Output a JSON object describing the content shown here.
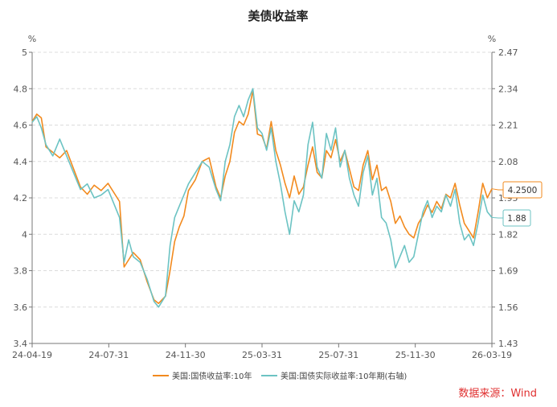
{
  "chart_data": {
    "type": "line",
    "title": "美债收益率",
    "left_axis": {
      "unit": "%",
      "min": 3.4,
      "max": 5.0,
      "ticks": [
        "3.4",
        "3.6",
        "3.8",
        "4",
        "4.2",
        "4.4",
        "4.6",
        "4.8",
        "5"
      ]
    },
    "right_axis": {
      "unit": "%",
      "min": 1.43,
      "max": 2.47,
      "ticks": [
        "1.43",
        "1.56",
        "1.69",
        "1.82",
        "1.95",
        "2.08",
        "2.21",
        "2.34",
        "2.47"
      ]
    },
    "x_ticks": [
      "24-04-19",
      "24-07-31",
      "24-11-30",
      "25-03-31",
      "25-07-31",
      "25-11-30",
      "26-03-19"
    ],
    "series": [
      {
        "name": "美国:国债收益率:10年",
        "axis": "left",
        "color": "#f28a1e",
        "last_label": "4.2500",
        "points": [
          [
            0,
            4.62
          ],
          [
            0.01,
            4.66
          ],
          [
            0.02,
            4.64
          ],
          [
            0.03,
            4.48
          ],
          [
            0.045,
            4.45
          ],
          [
            0.06,
            4.42
          ],
          [
            0.075,
            4.46
          ],
          [
            0.09,
            4.36
          ],
          [
            0.105,
            4.26
          ],
          [
            0.12,
            4.22
          ],
          [
            0.135,
            4.27
          ],
          [
            0.15,
            4.24
          ],
          [
            0.165,
            4.28
          ],
          [
            0.18,
            4.22
          ],
          [
            0.19,
            4.18
          ],
          [
            0.2,
            3.82
          ],
          [
            0.21,
            3.86
          ],
          [
            0.22,
            3.9
          ],
          [
            0.235,
            3.86
          ],
          [
            0.25,
            3.74
          ],
          [
            0.265,
            3.64
          ],
          [
            0.275,
            3.62
          ],
          [
            0.29,
            3.66
          ],
          [
            0.3,
            3.8
          ],
          [
            0.31,
            3.96
          ],
          [
            0.32,
            4.04
          ],
          [
            0.33,
            4.1
          ],
          [
            0.34,
            4.24
          ],
          [
            0.355,
            4.3
          ],
          [
            0.37,
            4.4
          ],
          [
            0.385,
            4.42
          ],
          [
            0.4,
            4.26
          ],
          [
            0.41,
            4.2
          ],
          [
            0.42,
            4.32
          ],
          [
            0.43,
            4.4
          ],
          [
            0.44,
            4.56
          ],
          [
            0.45,
            4.62
          ],
          [
            0.46,
            4.6
          ],
          [
            0.47,
            4.66
          ],
          [
            0.48,
            4.79
          ],
          [
            0.49,
            4.55
          ],
          [
            0.5,
            4.54
          ],
          [
            0.51,
            4.47
          ],
          [
            0.52,
            4.62
          ],
          [
            0.53,
            4.46
          ],
          [
            0.54,
            4.38
          ],
          [
            0.55,
            4.28
          ],
          [
            0.56,
            4.2
          ],
          [
            0.57,
            4.32
          ],
          [
            0.58,
            4.22
          ],
          [
            0.59,
            4.26
          ],
          [
            0.6,
            4.38
          ],
          [
            0.61,
            4.48
          ],
          [
            0.62,
            4.34
          ],
          [
            0.63,
            4.31
          ],
          [
            0.64,
            4.46
          ],
          [
            0.65,
            4.42
          ],
          [
            0.66,
            4.52
          ],
          [
            0.67,
            4.4
          ],
          [
            0.68,
            4.46
          ],
          [
            0.69,
            4.36
          ],
          [
            0.7,
            4.26
          ],
          [
            0.71,
            4.24
          ],
          [
            0.72,
            4.38
          ],
          [
            0.73,
            4.46
          ],
          [
            0.74,
            4.3
          ],
          [
            0.75,
            4.38
          ],
          [
            0.76,
            4.24
          ],
          [
            0.77,
            4.26
          ],
          [
            0.78,
            4.18
          ],
          [
            0.79,
            4.06
          ],
          [
            0.8,
            4.1
          ],
          [
            0.81,
            4.04
          ],
          [
            0.82,
            4.0
          ],
          [
            0.83,
            3.98
          ],
          [
            0.84,
            4.06
          ],
          [
            0.85,
            4.1
          ],
          [
            0.86,
            4.16
          ],
          [
            0.87,
            4.12
          ],
          [
            0.88,
            4.18
          ],
          [
            0.89,
            4.14
          ],
          [
            0.9,
            4.22
          ],
          [
            0.91,
            4.2
          ],
          [
            0.92,
            4.28
          ],
          [
            0.93,
            4.16
          ],
          [
            0.94,
            4.06
          ],
          [
            0.95,
            4.02
          ],
          [
            0.96,
            3.98
          ],
          [
            0.97,
            4.12
          ],
          [
            0.98,
            4.28
          ],
          [
            0.99,
            4.2
          ],
          [
            1.0,
            4.25
          ]
        ]
      },
      {
        "name": "美国:国债实际收益率:10年期(右轴)",
        "axis": "right",
        "color": "#6cc3c3",
        "last_label": "1.88",
        "points": [
          [
            0,
            2.22
          ],
          [
            0.01,
            2.24
          ],
          [
            0.02,
            2.2
          ],
          [
            0.03,
            2.14
          ],
          [
            0.045,
            2.1
          ],
          [
            0.06,
            2.16
          ],
          [
            0.075,
            2.1
          ],
          [
            0.09,
            2.04
          ],
          [
            0.105,
            1.98
          ],
          [
            0.12,
            2.0
          ],
          [
            0.135,
            1.95
          ],
          [
            0.15,
            1.96
          ],
          [
            0.165,
            1.98
          ],
          [
            0.18,
            1.92
          ],
          [
            0.19,
            1.88
          ],
          [
            0.2,
            1.72
          ],
          [
            0.21,
            1.8
          ],
          [
            0.22,
            1.74
          ],
          [
            0.235,
            1.72
          ],
          [
            0.25,
            1.66
          ],
          [
            0.265,
            1.58
          ],
          [
            0.275,
            1.56
          ],
          [
            0.29,
            1.6
          ],
          [
            0.3,
            1.78
          ],
          [
            0.31,
            1.88
          ],
          [
            0.32,
            1.92
          ],
          [
            0.33,
            1.96
          ],
          [
            0.34,
            2.0
          ],
          [
            0.355,
            2.04
          ],
          [
            0.37,
            2.08
          ],
          [
            0.385,
            2.06
          ],
          [
            0.4,
            1.98
          ],
          [
            0.41,
            1.94
          ],
          [
            0.42,
            2.08
          ],
          [
            0.43,
            2.14
          ],
          [
            0.44,
            2.24
          ],
          [
            0.45,
            2.28
          ],
          [
            0.46,
            2.24
          ],
          [
            0.47,
            2.3
          ],
          [
            0.48,
            2.34
          ],
          [
            0.49,
            2.2
          ],
          [
            0.5,
            2.18
          ],
          [
            0.51,
            2.12
          ],
          [
            0.52,
            2.2
          ],
          [
            0.53,
            2.08
          ],
          [
            0.54,
            2.0
          ],
          [
            0.55,
            1.9
          ],
          [
            0.56,
            1.82
          ],
          [
            0.57,
            1.94
          ],
          [
            0.58,
            1.9
          ],
          [
            0.59,
            1.96
          ],
          [
            0.6,
            2.14
          ],
          [
            0.61,
            2.22
          ],
          [
            0.62,
            2.06
          ],
          [
            0.63,
            2.02
          ],
          [
            0.64,
            2.18
          ],
          [
            0.65,
            2.12
          ],
          [
            0.66,
            2.2
          ],
          [
            0.67,
            2.06
          ],
          [
            0.68,
            2.12
          ],
          [
            0.69,
            2.02
          ],
          [
            0.7,
            1.96
          ],
          [
            0.71,
            1.92
          ],
          [
            0.72,
            2.04
          ],
          [
            0.73,
            2.1
          ],
          [
            0.74,
            1.96
          ],
          [
            0.75,
            2.02
          ],
          [
            0.76,
            1.88
          ],
          [
            0.77,
            1.86
          ],
          [
            0.78,
            1.8
          ],
          [
            0.79,
            1.7
          ],
          [
            0.8,
            1.74
          ],
          [
            0.81,
            1.78
          ],
          [
            0.82,
            1.72
          ],
          [
            0.83,
            1.74
          ],
          [
            0.84,
            1.82
          ],
          [
            0.85,
            1.9
          ],
          [
            0.86,
            1.94
          ],
          [
            0.87,
            1.88
          ],
          [
            0.88,
            1.92
          ],
          [
            0.89,
            1.9
          ],
          [
            0.9,
            1.96
          ],
          [
            0.91,
            1.92
          ],
          [
            0.92,
            1.98
          ],
          [
            0.93,
            1.86
          ],
          [
            0.94,
            1.8
          ],
          [
            0.95,
            1.82
          ],
          [
            0.96,
            1.78
          ],
          [
            0.97,
            1.86
          ],
          [
            0.98,
            1.96
          ],
          [
            0.99,
            1.9
          ],
          [
            1.0,
            1.88
          ]
        ]
      }
    ]
  },
  "source": "数据来源：Wind"
}
